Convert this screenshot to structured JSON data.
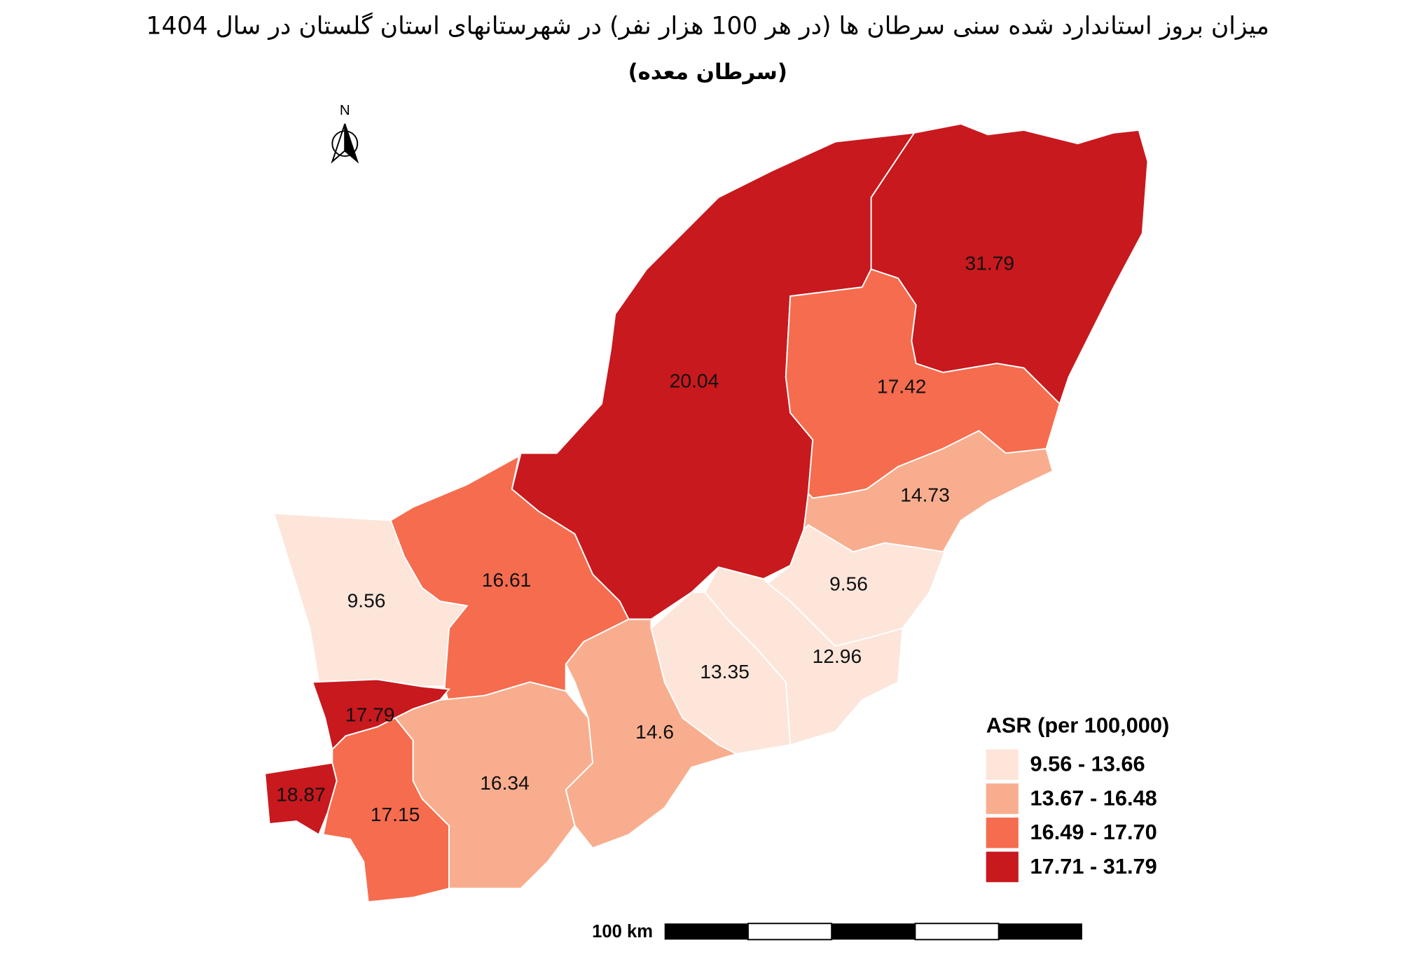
{
  "title": "میزان بروز استاندارد شده سنی سرطان ها (در هر 100 هزار نفر) در شهرستانهای استان گلستان در سال 1404",
  "subtitle": "(سرطان معده)",
  "north": "N",
  "regions": [
    {
      "value": 31.79,
      "color": "#c8191e"
    },
    {
      "value": 20.04,
      "color": "#c8191e"
    },
    {
      "value": 17.42,
      "color": "#f66c4e"
    },
    {
      "value": 14.73,
      "color": "#f8ae8e"
    },
    {
      "value": 9.56,
      "color": "#fde5da"
    },
    {
      "value": 12.96,
      "color": "#fde5da"
    },
    {
      "value": 13.35,
      "color": "#fde5da"
    },
    {
      "value": 14.6,
      "color": "#f8ae8e"
    },
    {
      "value": 16.61,
      "color": "#f66c4e"
    },
    {
      "value": 9.56,
      "color": "#fde5da"
    },
    {
      "value": 17.79,
      "color": "#c8191e"
    },
    {
      "value": 18.87,
      "color": "#c8191e"
    },
    {
      "value": 17.15,
      "color": "#f66c4e"
    },
    {
      "value": 16.34,
      "color": "#f8ae8e"
    }
  ],
  "legend": {
    "title": "ASR (per 100,000)",
    "items": [
      {
        "label": "9.56 - 13.66",
        "color": "#fde5da"
      },
      {
        "label": "13.67 - 16.48",
        "color": "#f8ae8e"
      },
      {
        "label": "16.49 - 17.70",
        "color": "#f66c4e"
      },
      {
        "label": "17.71 - 31.79",
        "color": "#c8191e"
      }
    ]
  },
  "scale_bar": {
    "label": "100 km"
  }
}
